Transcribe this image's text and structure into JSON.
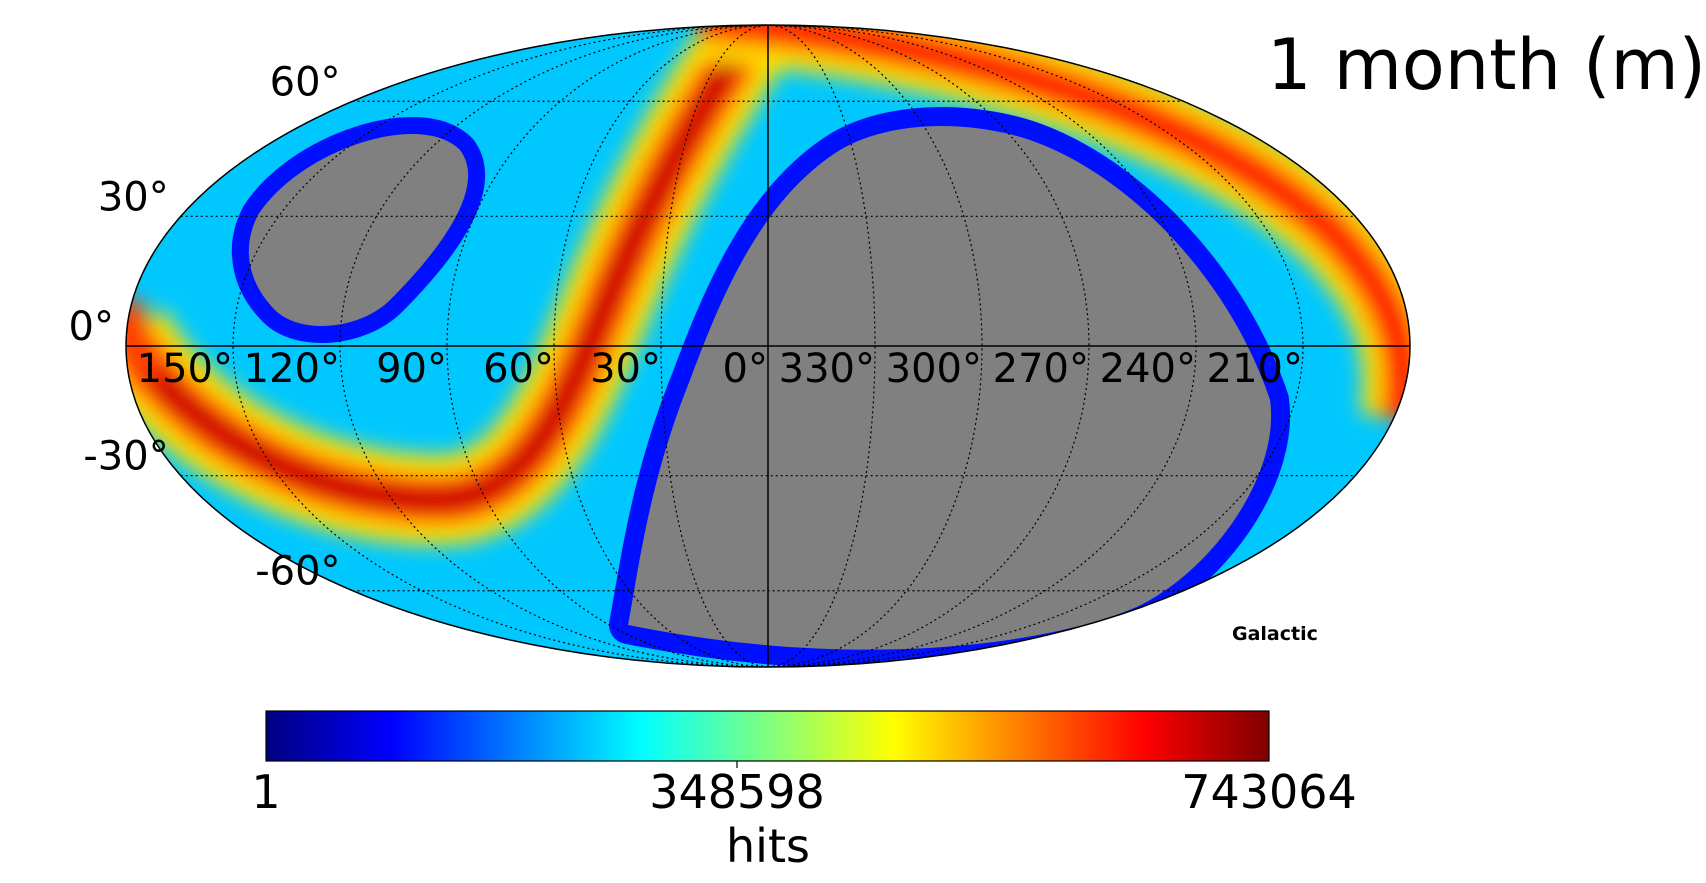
{
  "title": "1 month (m)",
  "coord_system_label": "Galactic",
  "projection": "mollweide",
  "center_longitude_deg": 0,
  "longitude_direction": "increasing to the left",
  "masked_region_color": "#808080",
  "colormap": "jet",
  "colormap_stops": [
    "#00007f",
    "#0000ff",
    "#007fff",
    "#00ffff",
    "#7fff7f",
    "#ffff00",
    "#ff7f00",
    "#ff0000",
    "#7f0000"
  ],
  "graticule": {
    "latitudes_deg": [
      60,
      30,
      0,
      -30,
      -60
    ],
    "latitude_labels": [
      "60°",
      "30°",
      "0°",
      "-30°",
      "-60°"
    ],
    "longitudes_deg": [
      150,
      120,
      90,
      60,
      30,
      0,
      330,
      300,
      270,
      240,
      210
    ],
    "longitude_labels": [
      "150°",
      "120°",
      "90°",
      "60°",
      "30°",
      "0°",
      "330°",
      "300°",
      "270°",
      "240°",
      "210°"
    ]
  },
  "colorbar": {
    "min_label": "1",
    "mid_label": "348598",
    "max_label": "743064",
    "unit_label": "hits"
  }
}
